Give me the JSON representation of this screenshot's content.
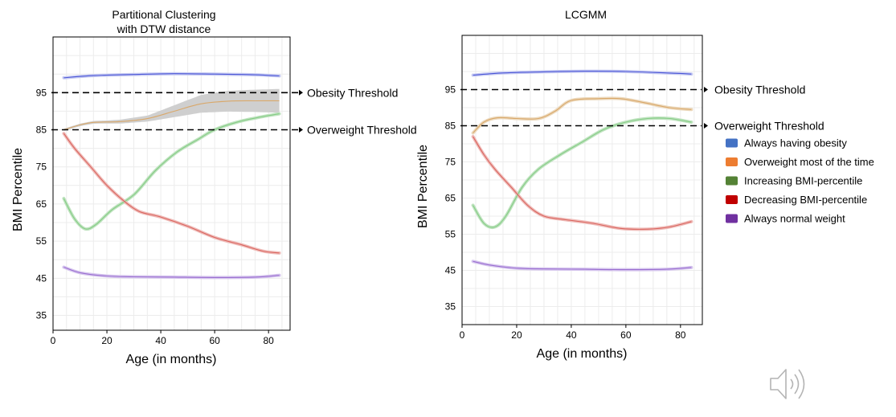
{
  "chart_data": [
    {
      "type": "line",
      "title_lines": [
        "Partitional Clustering",
        "with DTW distance"
      ],
      "xlabel": "Age (in months)",
      "ylabel": "BMI Percentile",
      "xlim": [
        0,
        88
      ],
      "ylim": [
        31,
        110
      ],
      "xticks": [
        0,
        20,
        40,
        60,
        80
      ],
      "yticks": [
        35,
        45,
        55,
        65,
        75,
        85,
        95
      ],
      "grid": true,
      "thresholds": [
        {
          "name": "Obesity Threshold",
          "value": 95
        },
        {
          "name": "Overweight Threshold",
          "value": 85
        }
      ],
      "series": [
        {
          "color": "#4a55d6",
          "band_color": "#c8ccf2",
          "points": [
            [
              4,
              99
            ],
            [
              15,
              99.6
            ],
            [
              30,
              99.9
            ],
            [
              45,
              100.1
            ],
            [
              60,
              100
            ],
            [
              75,
              99.8
            ],
            [
              84,
              99.5
            ]
          ]
        },
        {
          "color": "#d9a86a",
          "band_color": "#cfcfcf",
          "points": [
            [
              4,
              85
            ],
            [
              10,
              86.3
            ],
            [
              15,
              87
            ],
            [
              25,
              87.2
            ],
            [
              35,
              88
            ],
            [
              45,
              90
            ],
            [
              55,
              92
            ],
            [
              65,
              92.7
            ],
            [
              75,
              92.8
            ],
            [
              84,
              92.8
            ]
          ],
          "band": [
            [
              4,
              0.3
            ],
            [
              20,
              0.4
            ],
            [
              35,
              0.8
            ],
            [
              45,
              1.6
            ],
            [
              55,
              2.4
            ],
            [
              65,
              2.8
            ],
            [
              84,
              3.2
            ]
          ]
        },
        {
          "color": "#86cc86",
          "band_color": "#bfe3bf",
          "points": [
            [
              4,
              66.5
            ],
            [
              8,
              61
            ],
            [
              12,
              58.3
            ],
            [
              16,
              59.5
            ],
            [
              22,
              63.5
            ],
            [
              30,
              67.5
            ],
            [
              38,
              74
            ],
            [
              46,
              79
            ],
            [
              54,
              82.5
            ],
            [
              60,
              85
            ],
            [
              68,
              87
            ],
            [
              76,
              88.3
            ],
            [
              84,
              89.3
            ]
          ]
        },
        {
          "color": "#d9645e",
          "band_color": "#efbcb9",
          "points": [
            [
              4,
              84
            ],
            [
              8,
              80
            ],
            [
              14,
              75
            ],
            [
              20,
              70
            ],
            [
              26,
              66
            ],
            [
              32,
              63
            ],
            [
              40,
              61.5
            ],
            [
              50,
              59
            ],
            [
              60,
              56
            ],
            [
              70,
              54
            ],
            [
              78,
              52.3
            ],
            [
              84,
              51.8
            ]
          ]
        },
        {
          "color": "#9a6ed0",
          "band_color": "#d6c6ee",
          "points": [
            [
              4,
              48
            ],
            [
              10,
              46.5
            ],
            [
              20,
              45.6
            ],
            [
              30,
              45.4
            ],
            [
              45,
              45.3
            ],
            [
              60,
              45.2
            ],
            [
              75,
              45.3
            ],
            [
              84,
              45.8
            ]
          ]
        }
      ]
    },
    {
      "type": "line",
      "title_lines": [
        "LCGMM"
      ],
      "xlabel": "Age (in months)",
      "ylabel": "BMI Percentile",
      "xlim": [
        0,
        88
      ],
      "ylim": [
        30,
        110
      ],
      "xticks": [
        0,
        20,
        40,
        60,
        80
      ],
      "yticks": [
        35,
        45,
        55,
        65,
        75,
        85,
        95
      ],
      "grid": true,
      "thresholds": [
        {
          "name": "Obesity Threshold",
          "value": 95
        },
        {
          "name": "Overweight Threshold",
          "value": 85
        }
      ],
      "series": [
        {
          "name": "Always having obesity",
          "color": "#4472c4",
          "line_color": "#4a55d6",
          "band_color": "#c8ccf2",
          "points": [
            [
              4,
              99
            ],
            [
              15,
              99.6
            ],
            [
              30,
              99.9
            ],
            [
              45,
              100.1
            ],
            [
              60,
              100
            ],
            [
              75,
              99.6
            ],
            [
              84,
              99.3
            ]
          ]
        },
        {
          "name": "Overweight most of the time",
          "color": "#ed7d31",
          "line_color": "#d9a86a",
          "band_color": "#ecd9bd",
          "points": [
            [
              4,
              83
            ],
            [
              8,
              86
            ],
            [
              13,
              87.2
            ],
            [
              20,
              87
            ],
            [
              28,
              87
            ],
            [
              34,
              89
            ],
            [
              40,
              92
            ],
            [
              50,
              92.5
            ],
            [
              58,
              92.5
            ],
            [
              66,
              91.5
            ],
            [
              76,
              90
            ],
            [
              84,
              89.5
            ]
          ]
        },
        {
          "name": "Increasing BMI-percentile",
          "color": "#548235",
          "line_color": "#86cc86",
          "band_color": "#bfe3bf",
          "points": [
            [
              4,
              63
            ],
            [
              8,
              58
            ],
            [
              12,
              57
            ],
            [
              16,
              60
            ],
            [
              22,
              68
            ],
            [
              28,
              73
            ],
            [
              36,
              77
            ],
            [
              44,
              80.5
            ],
            [
              52,
              84
            ],
            [
              60,
              86
            ],
            [
              68,
              87
            ],
            [
              76,
              87
            ],
            [
              84,
              86
            ]
          ]
        },
        {
          "name": "Decreasing BMI-percentile",
          "color": "#c00000",
          "line_color": "#d9645e",
          "band_color": "#efbcb9",
          "points": [
            [
              4,
              82
            ],
            [
              8,
              77
            ],
            [
              12,
              73
            ],
            [
              18,
              68
            ],
            [
              24,
              63
            ],
            [
              30,
              60
            ],
            [
              38,
              59
            ],
            [
              48,
              58
            ],
            [
              58,
              56.6
            ],
            [
              68,
              56.4
            ],
            [
              76,
              57
            ],
            [
              84,
              58.5
            ]
          ]
        },
        {
          "name": "Always normal weight",
          "color": "#7030a0",
          "line_color": "#9a6ed0",
          "band_color": "#d6c6ee",
          "points": [
            [
              4,
              47.5
            ],
            [
              10,
              46.5
            ],
            [
              20,
              45.6
            ],
            [
              30,
              45.4
            ],
            [
              45,
              45.3
            ],
            [
              60,
              45.2
            ],
            [
              75,
              45.3
            ],
            [
              84,
              45.8
            ]
          ]
        }
      ]
    }
  ],
  "icons": {
    "speaker": "speaker-icon"
  }
}
